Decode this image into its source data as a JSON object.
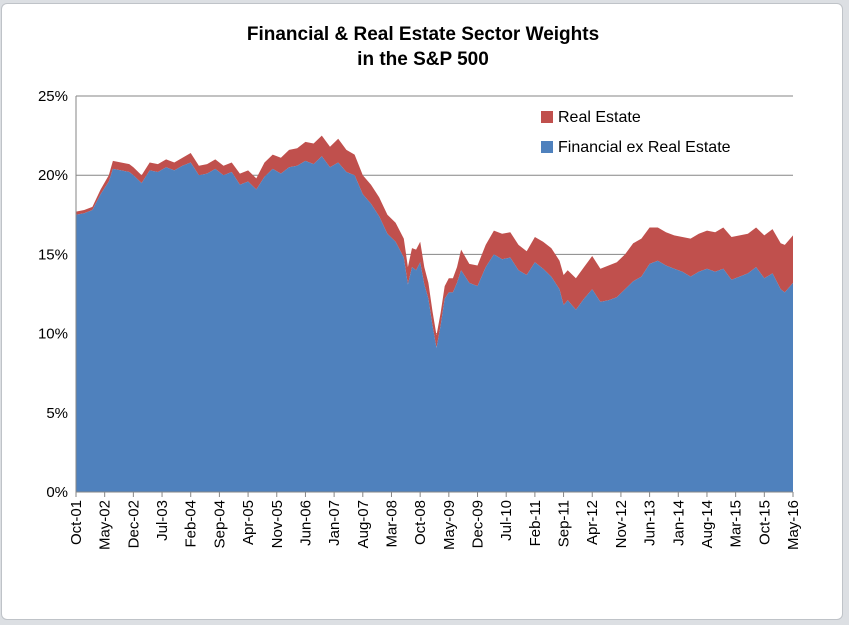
{
  "chart_data": {
    "type": "area",
    "stacked": true,
    "title": [
      "Financial & Real Estate Sector Weights",
      "in the S&P 500"
    ],
    "ylim": [
      0,
      25
    ],
    "y_ticks": [
      "0%",
      "5%",
      "10%",
      "15%",
      "20%",
      "25%"
    ],
    "x_range": [
      "2001-10",
      "2016-05"
    ],
    "x_tick_labels": [
      "Oct-01",
      "May-02",
      "Dec-02",
      "Jul-03",
      "Feb-04",
      "Sep-04",
      "Apr-05",
      "Nov-05",
      "Jun-06",
      "Jan-07",
      "Aug-07",
      "Mar-08",
      "Oct-08",
      "May-09",
      "Dec-09",
      "Jul-10",
      "Feb-11",
      "Sep-11",
      "Apr-12",
      "Nov-12",
      "Jun-13",
      "Jan-14",
      "Aug-14",
      "Mar-15",
      "Oct-15",
      "May-16"
    ],
    "grid": "horizontal",
    "legend_position": "top-right",
    "series": [
      {
        "name": "Financial ex Real Estate",
        "color": "#4f81bd",
        "points": [
          [
            "2001-10",
            17.5
          ],
          [
            "2001-12",
            17.6
          ],
          [
            "2002-02",
            17.8
          ],
          [
            "2002-04",
            18.8
          ],
          [
            "2002-06",
            19.6
          ],
          [
            "2002-07",
            20.4
          ],
          [
            "2002-09",
            20.3
          ],
          [
            "2002-11",
            20.2
          ],
          [
            "2002-12",
            20.0
          ],
          [
            "2003-02",
            19.5
          ],
          [
            "2003-04",
            20.3
          ],
          [
            "2003-06",
            20.2
          ],
          [
            "2003-08",
            20.5
          ],
          [
            "2003-10",
            20.3
          ],
          [
            "2003-12",
            20.6
          ],
          [
            "2004-02",
            20.8
          ],
          [
            "2004-04",
            20.0
          ],
          [
            "2004-06",
            20.1
          ],
          [
            "2004-08",
            20.4
          ],
          [
            "2004-10",
            20.0
          ],
          [
            "2004-12",
            20.2
          ],
          [
            "2005-02",
            19.4
          ],
          [
            "2005-04",
            19.6
          ],
          [
            "2005-06",
            19.1
          ],
          [
            "2005-08",
            19.9
          ],
          [
            "2005-10",
            20.4
          ],
          [
            "2005-12",
            20.1
          ],
          [
            "2006-02",
            20.5
          ],
          [
            "2006-04",
            20.6
          ],
          [
            "2006-06",
            20.9
          ],
          [
            "2006-08",
            20.7
          ],
          [
            "2006-10",
            21.2
          ],
          [
            "2006-12",
            20.5
          ],
          [
            "2007-02",
            20.8
          ],
          [
            "2007-04",
            20.2
          ],
          [
            "2007-06",
            20.0
          ],
          [
            "2007-08",
            18.8
          ],
          [
            "2007-10",
            18.2
          ],
          [
            "2007-12",
            17.4
          ],
          [
            "2008-02",
            16.3
          ],
          [
            "2008-04",
            15.8
          ],
          [
            "2008-06",
            14.8
          ],
          [
            "2008-07",
            13.1
          ],
          [
            "2008-08",
            14.2
          ],
          [
            "2008-09",
            14.0
          ],
          [
            "2008-10",
            14.5
          ],
          [
            "2008-11",
            13.1
          ],
          [
            "2008-12",
            12.2
          ],
          [
            "2009-01",
            10.5
          ],
          [
            "2009-02",
            9.1
          ],
          [
            "2009-03",
            10.5
          ],
          [
            "2009-04",
            12.2
          ],
          [
            "2009-05",
            12.6
          ],
          [
            "2009-06",
            12.6
          ],
          [
            "2009-07",
            13.2
          ],
          [
            "2009-08",
            14.0
          ],
          [
            "2009-10",
            13.2
          ],
          [
            "2009-12",
            13.0
          ],
          [
            "2010-02",
            14.2
          ],
          [
            "2010-04",
            15.0
          ],
          [
            "2010-06",
            14.7
          ],
          [
            "2010-08",
            14.8
          ],
          [
            "2010-10",
            14.0
          ],
          [
            "2010-12",
            13.7
          ],
          [
            "2011-02",
            14.5
          ],
          [
            "2011-04",
            14.1
          ],
          [
            "2011-06",
            13.6
          ],
          [
            "2011-08",
            12.8
          ],
          [
            "2011-09",
            11.8
          ],
          [
            "2011-10",
            12.1
          ],
          [
            "2011-12",
            11.5
          ],
          [
            "2012-02",
            12.2
          ],
          [
            "2012-04",
            12.8
          ],
          [
            "2012-06",
            12.0
          ],
          [
            "2012-08",
            12.1
          ],
          [
            "2012-10",
            12.3
          ],
          [
            "2012-12",
            12.8
          ],
          [
            "2013-02",
            13.3
          ],
          [
            "2013-04",
            13.6
          ],
          [
            "2013-06",
            14.4
          ],
          [
            "2013-08",
            14.6
          ],
          [
            "2013-10",
            14.3
          ],
          [
            "2013-12",
            14.1
          ],
          [
            "2014-02",
            13.9
          ],
          [
            "2014-04",
            13.6
          ],
          [
            "2014-06",
            13.9
          ],
          [
            "2014-08",
            14.1
          ],
          [
            "2014-10",
            13.9
          ],
          [
            "2014-12",
            14.1
          ],
          [
            "2015-02",
            13.4
          ],
          [
            "2015-04",
            13.6
          ],
          [
            "2015-06",
            13.8
          ],
          [
            "2015-08",
            14.2
          ],
          [
            "2015-10",
            13.5
          ],
          [
            "2015-12",
            13.8
          ],
          [
            "2016-02",
            12.8
          ],
          [
            "2016-03",
            12.6
          ],
          [
            "2016-05",
            13.2
          ]
        ]
      },
      {
        "name": "Real Estate",
        "color": "#c0504d",
        "points": [
          [
            "2001-10",
            0.2
          ],
          [
            "2001-12",
            0.2
          ],
          [
            "2002-02",
            0.2
          ],
          [
            "2002-04",
            0.3
          ],
          [
            "2002-06",
            0.4
          ],
          [
            "2002-07",
            0.5
          ],
          [
            "2002-09",
            0.5
          ],
          [
            "2002-11",
            0.5
          ],
          [
            "2002-12",
            0.5
          ],
          [
            "2003-02",
            0.5
          ],
          [
            "2003-04",
            0.5
          ],
          [
            "2003-06",
            0.5
          ],
          [
            "2003-08",
            0.5
          ],
          [
            "2003-10",
            0.5
          ],
          [
            "2003-12",
            0.5
          ],
          [
            "2004-02",
            0.6
          ],
          [
            "2004-04",
            0.6
          ],
          [
            "2004-06",
            0.6
          ],
          [
            "2004-08",
            0.6
          ],
          [
            "2004-10",
            0.6
          ],
          [
            "2004-12",
            0.6
          ],
          [
            "2005-02",
            0.7
          ],
          [
            "2005-04",
            0.7
          ],
          [
            "2005-06",
            0.7
          ],
          [
            "2005-08",
            0.9
          ],
          [
            "2005-10",
            0.9
          ],
          [
            "2005-12",
            1.0
          ],
          [
            "2006-02",
            1.1
          ],
          [
            "2006-04",
            1.1
          ],
          [
            "2006-06",
            1.2
          ],
          [
            "2006-08",
            1.3
          ],
          [
            "2006-10",
            1.3
          ],
          [
            "2006-12",
            1.3
          ],
          [
            "2007-02",
            1.5
          ],
          [
            "2007-04",
            1.4
          ],
          [
            "2007-06",
            1.3
          ],
          [
            "2007-08",
            1.2
          ],
          [
            "2007-10",
            1.2
          ],
          [
            "2007-12",
            1.2
          ],
          [
            "2008-02",
            1.2
          ],
          [
            "2008-04",
            1.2
          ],
          [
            "2008-06",
            1.2
          ],
          [
            "2008-07",
            1.1
          ],
          [
            "2008-08",
            1.2
          ],
          [
            "2008-09",
            1.3
          ],
          [
            "2008-10",
            1.3
          ],
          [
            "2008-11",
            1.1
          ],
          [
            "2008-12",
            1.0
          ],
          [
            "2009-01",
            0.9
          ],
          [
            "2009-02",
            0.8
          ],
          [
            "2009-03",
            0.8
          ],
          [
            "2009-04",
            0.8
          ],
          [
            "2009-05",
            0.9
          ],
          [
            "2009-06",
            0.9
          ],
          [
            "2009-07",
            1.0
          ],
          [
            "2009-08",
            1.3
          ],
          [
            "2009-10",
            1.2
          ],
          [
            "2009-12",
            1.3
          ],
          [
            "2010-02",
            1.4
          ],
          [
            "2010-04",
            1.5
          ],
          [
            "2010-06",
            1.6
          ],
          [
            "2010-08",
            1.6
          ],
          [
            "2010-10",
            1.6
          ],
          [
            "2010-12",
            1.5
          ],
          [
            "2011-02",
            1.6
          ],
          [
            "2011-04",
            1.7
          ],
          [
            "2011-06",
            1.8
          ],
          [
            "2011-08",
            1.8
          ],
          [
            "2011-09",
            1.9
          ],
          [
            "2011-10",
            1.9
          ],
          [
            "2011-12",
            2.0
          ],
          [
            "2012-02",
            2.0
          ],
          [
            "2012-04",
            2.1
          ],
          [
            "2012-06",
            2.1
          ],
          [
            "2012-08",
            2.2
          ],
          [
            "2012-10",
            2.2
          ],
          [
            "2012-12",
            2.2
          ],
          [
            "2013-02",
            2.4
          ],
          [
            "2013-04",
            2.4
          ],
          [
            "2013-06",
            2.3
          ],
          [
            "2013-08",
            2.1
          ],
          [
            "2013-10",
            2.1
          ],
          [
            "2013-12",
            2.1
          ],
          [
            "2014-02",
            2.2
          ],
          [
            "2014-04",
            2.4
          ],
          [
            "2014-06",
            2.4
          ],
          [
            "2014-08",
            2.4
          ],
          [
            "2014-10",
            2.5
          ],
          [
            "2014-12",
            2.6
          ],
          [
            "2015-02",
            2.7
          ],
          [
            "2015-04",
            2.6
          ],
          [
            "2015-06",
            2.5
          ],
          [
            "2015-08",
            2.5
          ],
          [
            "2015-10",
            2.7
          ],
          [
            "2015-12",
            2.8
          ],
          [
            "2016-02",
            2.9
          ],
          [
            "2016-03",
            3.0
          ],
          [
            "2016-05",
            3.0
          ]
        ]
      }
    ]
  }
}
